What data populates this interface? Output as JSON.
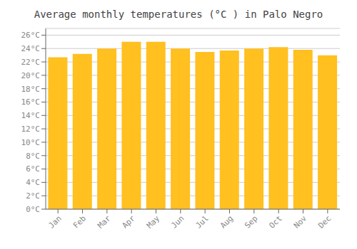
{
  "chart_data": {
    "type": "bar",
    "title": "Average monthly temperatures (°C ) in Palo Negro",
    "categories": [
      "Jan",
      "Feb",
      "Mar",
      "Apr",
      "May",
      "Jun",
      "Jul",
      "Aug",
      "Sep",
      "Oct",
      "Nov",
      "Dec"
    ],
    "values": [
      22.7,
      23.2,
      24.0,
      25.0,
      25.0,
      24.0,
      23.5,
      23.7,
      24.0,
      24.2,
      23.8,
      23.0
    ],
    "color": "#FFC020",
    "ylim": [
      0,
      27
    ],
    "yticks": [
      {
        "value": 0,
        "label": "0°C"
      },
      {
        "value": 2,
        "label": "2°C"
      },
      {
        "value": 4,
        "label": "4°C"
      },
      {
        "value": 6,
        "label": "6°C"
      },
      {
        "value": 8,
        "label": "8°C"
      },
      {
        "value": 10,
        "label": "10°C"
      },
      {
        "value": 12,
        "label": "12°C"
      },
      {
        "value": 14,
        "label": "14°C"
      },
      {
        "value": 16,
        "label": "16°C"
      },
      {
        "value": 18,
        "label": "18°C"
      },
      {
        "value": 20,
        "label": "20°C"
      },
      {
        "value": 22,
        "label": "22°C"
      },
      {
        "value": 24,
        "label": "24°C"
      },
      {
        "value": 26,
        "label": "26°C"
      }
    ],
    "grid": true
  }
}
